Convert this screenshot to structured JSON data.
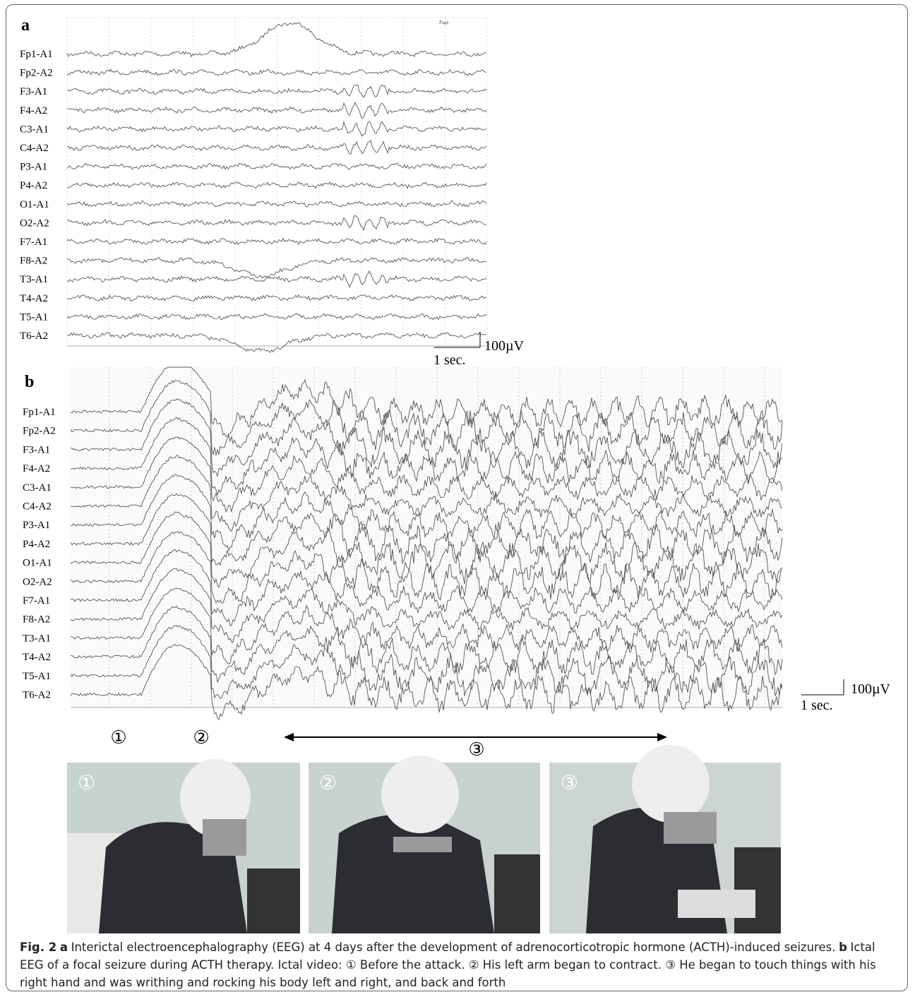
{
  "panels": {
    "a": {
      "label": "a",
      "page_text": "Page",
      "channels": [
        "Fp1-A1",
        "Fp2-A2",
        "F3-A1",
        "F4-A2",
        "C3-A1",
        "C4-A2",
        "P3-A1",
        "P4-A2",
        "O1-A1",
        "O2-A2",
        "F7-A1",
        "F8-A2",
        "T3-A1",
        "T4-A2",
        "T5-A1",
        "T6-A2"
      ],
      "amplitude_scale": "100µV",
      "time_scale": "1 sec."
    },
    "b": {
      "label": "b",
      "channels": [
        "Fp1-A1",
        "Fp2-A2",
        "F3-A1",
        "F4-A2",
        "C3-A1",
        "C4-A2",
        "P3-A1",
        "P4-A2",
        "O1-A1",
        "O2-A2",
        "F7-A1",
        "F8-A2",
        "T3-A1",
        "T4-A2",
        "T5-A1",
        "T6-A2"
      ],
      "amplitude_scale": "100µV",
      "time_scale": "1 sec.",
      "phase_markers": [
        "①",
        "②",
        "③"
      ]
    }
  },
  "photos": [
    {
      "marker": "①"
    },
    {
      "marker": "②"
    },
    {
      "marker": "③"
    }
  ],
  "caption": [
    {
      "text": "Fig. 2",
      "bold": true
    },
    {
      "text": "a",
      "bold": true
    },
    {
      "text": "Interictal electroencephalography (EEG) at 4 days after the development of adrenocorticotropic hormone (ACTH)-induced seizures.",
      "bold": false
    },
    {
      "text": "b",
      "bold": true
    },
    {
      "text": "Ictal EEG of a focal seizure during ACTH therapy. Ictal video: ① Before the attack. ② His left arm began to contract. ③ He began to touch things with his right hand and was writhing and rocking his body left and right, and back and forth",
      "bold": false
    }
  ]
}
